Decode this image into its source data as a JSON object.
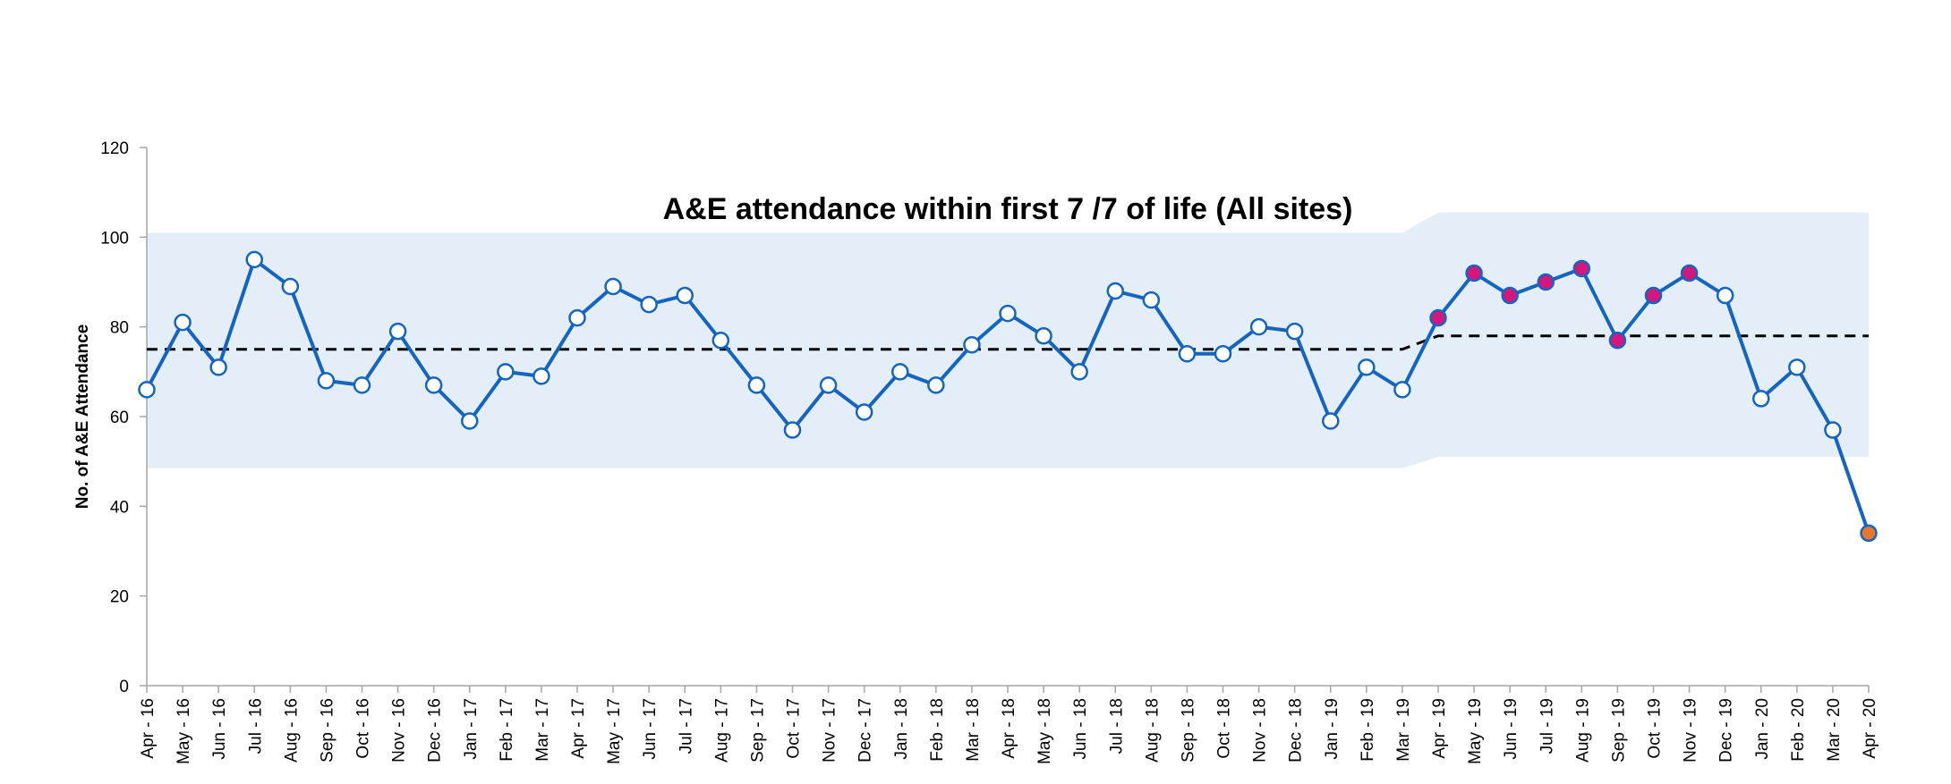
{
  "chart_data": {
    "type": "line",
    "title": "A&E attendance within first 7 /7 of life (All sites)",
    "ylabel": "No. of A&E Attendance",
    "xlabel": "",
    "ylim": [
      0,
      120
    ],
    "yticks": [
      "0",
      "20",
      "40",
      "60",
      "80",
      "100",
      "120"
    ],
    "ytick_values": [
      0,
      20,
      40,
      60,
      80,
      100,
      120
    ],
    "categories": [
      "Apr - 16",
      "May - 16",
      "Jun - 16",
      "Jul - 16",
      "Aug - 16",
      "Sep - 16",
      "Oct - 16",
      "Nov - 16",
      "Dec - 16",
      "Jan - 17",
      "Feb - 17",
      "Mar - 17",
      "Apr - 17",
      "May - 17",
      "Jun - 17",
      "Jul - 17",
      "Aug - 17",
      "Sep - 17",
      "Oct - 17",
      "Nov - 17",
      "Dec - 17",
      "Jan - 18",
      "Feb - 18",
      "Mar - 18",
      "Apr - 18",
      "May - 18",
      "Jun - 18",
      "Jul - 18",
      "Aug - 18",
      "Sep - 18",
      "Oct - 18",
      "Nov - 18",
      "Dec - 18",
      "Jan - 19",
      "Feb - 19",
      "Mar - 19",
      "Apr - 19",
      "May - 19",
      "Jun - 19",
      "Jul - 19",
      "Aug - 19",
      "Sep - 19",
      "Oct - 19",
      "Nov - 19",
      "Dec - 19",
      "Jan - 20",
      "Feb - 20",
      "Mar - 20",
      "Apr - 20"
    ],
    "series": [
      {
        "values": [
          66,
          81,
          71,
          95,
          89,
          68,
          67,
          79,
          67,
          59,
          70,
          69,
          82,
          89,
          85,
          87,
          77,
          67,
          57,
          67,
          61,
          70,
          67,
          76,
          83,
          78,
          70,
          88,
          86,
          74,
          74,
          80,
          79,
          59,
          71,
          66,
          82,
          92,
          87,
          90,
          93,
          77,
          87,
          92,
          87,
          64,
          71,
          57,
          34
        ],
        "marker_status": [
          "n",
          "n",
          "n",
          "n",
          "n",
          "n",
          "n",
          "n",
          "n",
          "n",
          "n",
          "n",
          "n",
          "n",
          "n",
          "n",
          "n",
          "n",
          "n",
          "n",
          "n",
          "n",
          "n",
          "n",
          "n",
          "n",
          "n",
          "n",
          "n",
          "n",
          "n",
          "n",
          "n",
          "n",
          "n",
          "n",
          "h",
          "h",
          "h",
          "h",
          "h",
          "h",
          "h",
          "h",
          "n",
          "n",
          "n",
          "n",
          "l"
        ]
      }
    ],
    "mean_line": {
      "segment1": {
        "from": 0,
        "to": 35,
        "value": 75
      },
      "segment2": {
        "from": 36,
        "to": 48,
        "value": 78
      }
    },
    "control_band": {
      "segment1": {
        "from": 0,
        "to": 35,
        "upper": 101,
        "lower": 48.5
      },
      "segment2": {
        "from": 36,
        "to": 48,
        "upper": 105.5,
        "lower": 51
      }
    },
    "colors": {
      "line": "#1565c0",
      "band": "#e3eef8",
      "marker_normal": "#ffffff",
      "marker_high": "#d6157d",
      "marker_low": "#e8772e",
      "mean_line": "#000000",
      "axis": "#a6a6a6"
    },
    "grid": false,
    "legend": "none"
  }
}
